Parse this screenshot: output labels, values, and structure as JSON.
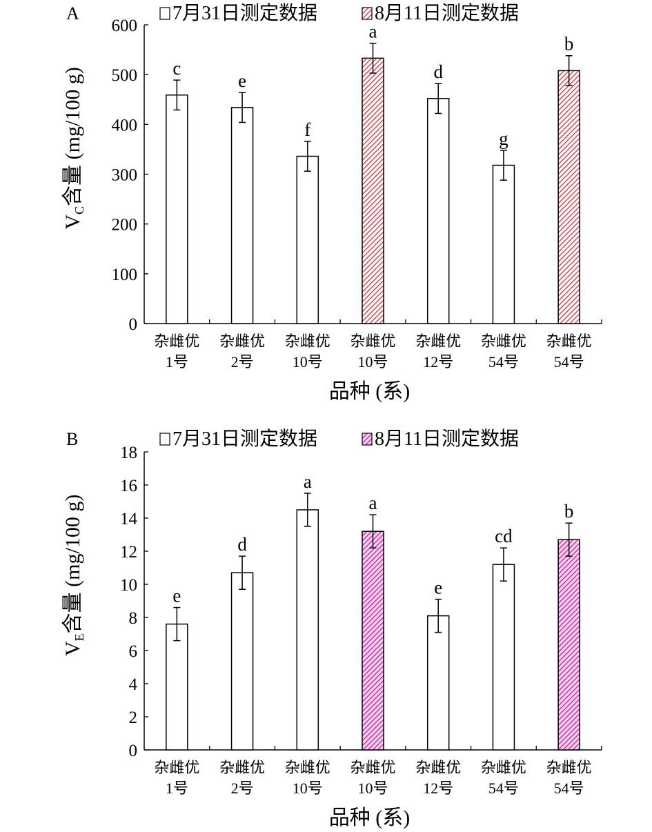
{
  "chart_data": [
    {
      "type": "bar",
      "panel_label": "A",
      "legend": [
        "7月31日测定数据",
        "8月11日测定数据"
      ],
      "legend_placement": "top",
      "categories": [
        [
          "杂雌优",
          "1号"
        ],
        [
          "杂雌优",
          "2号"
        ],
        [
          "杂雌优",
          "10号"
        ],
        [
          "杂雌优",
          "10号"
        ],
        [
          "杂雌优",
          "12号"
        ],
        [
          "杂雌优",
          "54号"
        ],
        [
          "杂雌优",
          "54号"
        ]
      ],
      "series_index": [
        0,
        0,
        0,
        1,
        0,
        0,
        1
      ],
      "values": [
        459,
        434,
        336,
        533,
        452,
        318,
        508
      ],
      "errors": [
        30,
        30,
        30,
        30,
        30,
        30,
        30
      ],
      "sig_letters": [
        "c",
        "e",
        "f",
        "a",
        "d",
        "g",
        "b"
      ],
      "ylabel_main": "V",
      "ylabel_sub": "C",
      "ylabel_rest": "含量 (mg/100 g)",
      "xlabel": "品种 (系)",
      "ylim": [
        0,
        600
      ],
      "yticks": [
        0,
        100,
        200,
        300,
        400,
        500,
        600
      ],
      "hatch_color": "#e8202a"
    },
    {
      "type": "bar",
      "panel_label": "B",
      "legend": [
        "7月31日测定数据",
        "8月11日测定数据"
      ],
      "legend_placement": "top",
      "categories": [
        [
          "杂雌优",
          "1号"
        ],
        [
          "杂雌优",
          "2号"
        ],
        [
          "杂雌优",
          "10号"
        ],
        [
          "杂雌优",
          "10号"
        ],
        [
          "杂雌优",
          "12号"
        ],
        [
          "杂雌优",
          "54号"
        ],
        [
          "杂雌优",
          "54号"
        ]
      ],
      "series_index": [
        0,
        0,
        0,
        1,
        0,
        0,
        1
      ],
      "values": [
        7.6,
        10.7,
        14.5,
        13.2,
        8.1,
        11.2,
        12.7
      ],
      "errors": [
        1,
        1,
        1,
        1,
        1,
        1,
        1
      ],
      "sig_letters": [
        "e",
        "d",
        "a",
        "a",
        "e",
        "cd",
        "b"
      ],
      "ylabel_main": "V",
      "ylabel_sub": "E",
      "ylabel_rest": "含量 (mg/100 g)",
      "xlabel": "品种 (系)",
      "ylim": [
        0,
        18
      ],
      "yticks": [
        0,
        2,
        4,
        6,
        8,
        10,
        12,
        14,
        16,
        18
      ],
      "hatch_color": "#c0189a"
    }
  ]
}
